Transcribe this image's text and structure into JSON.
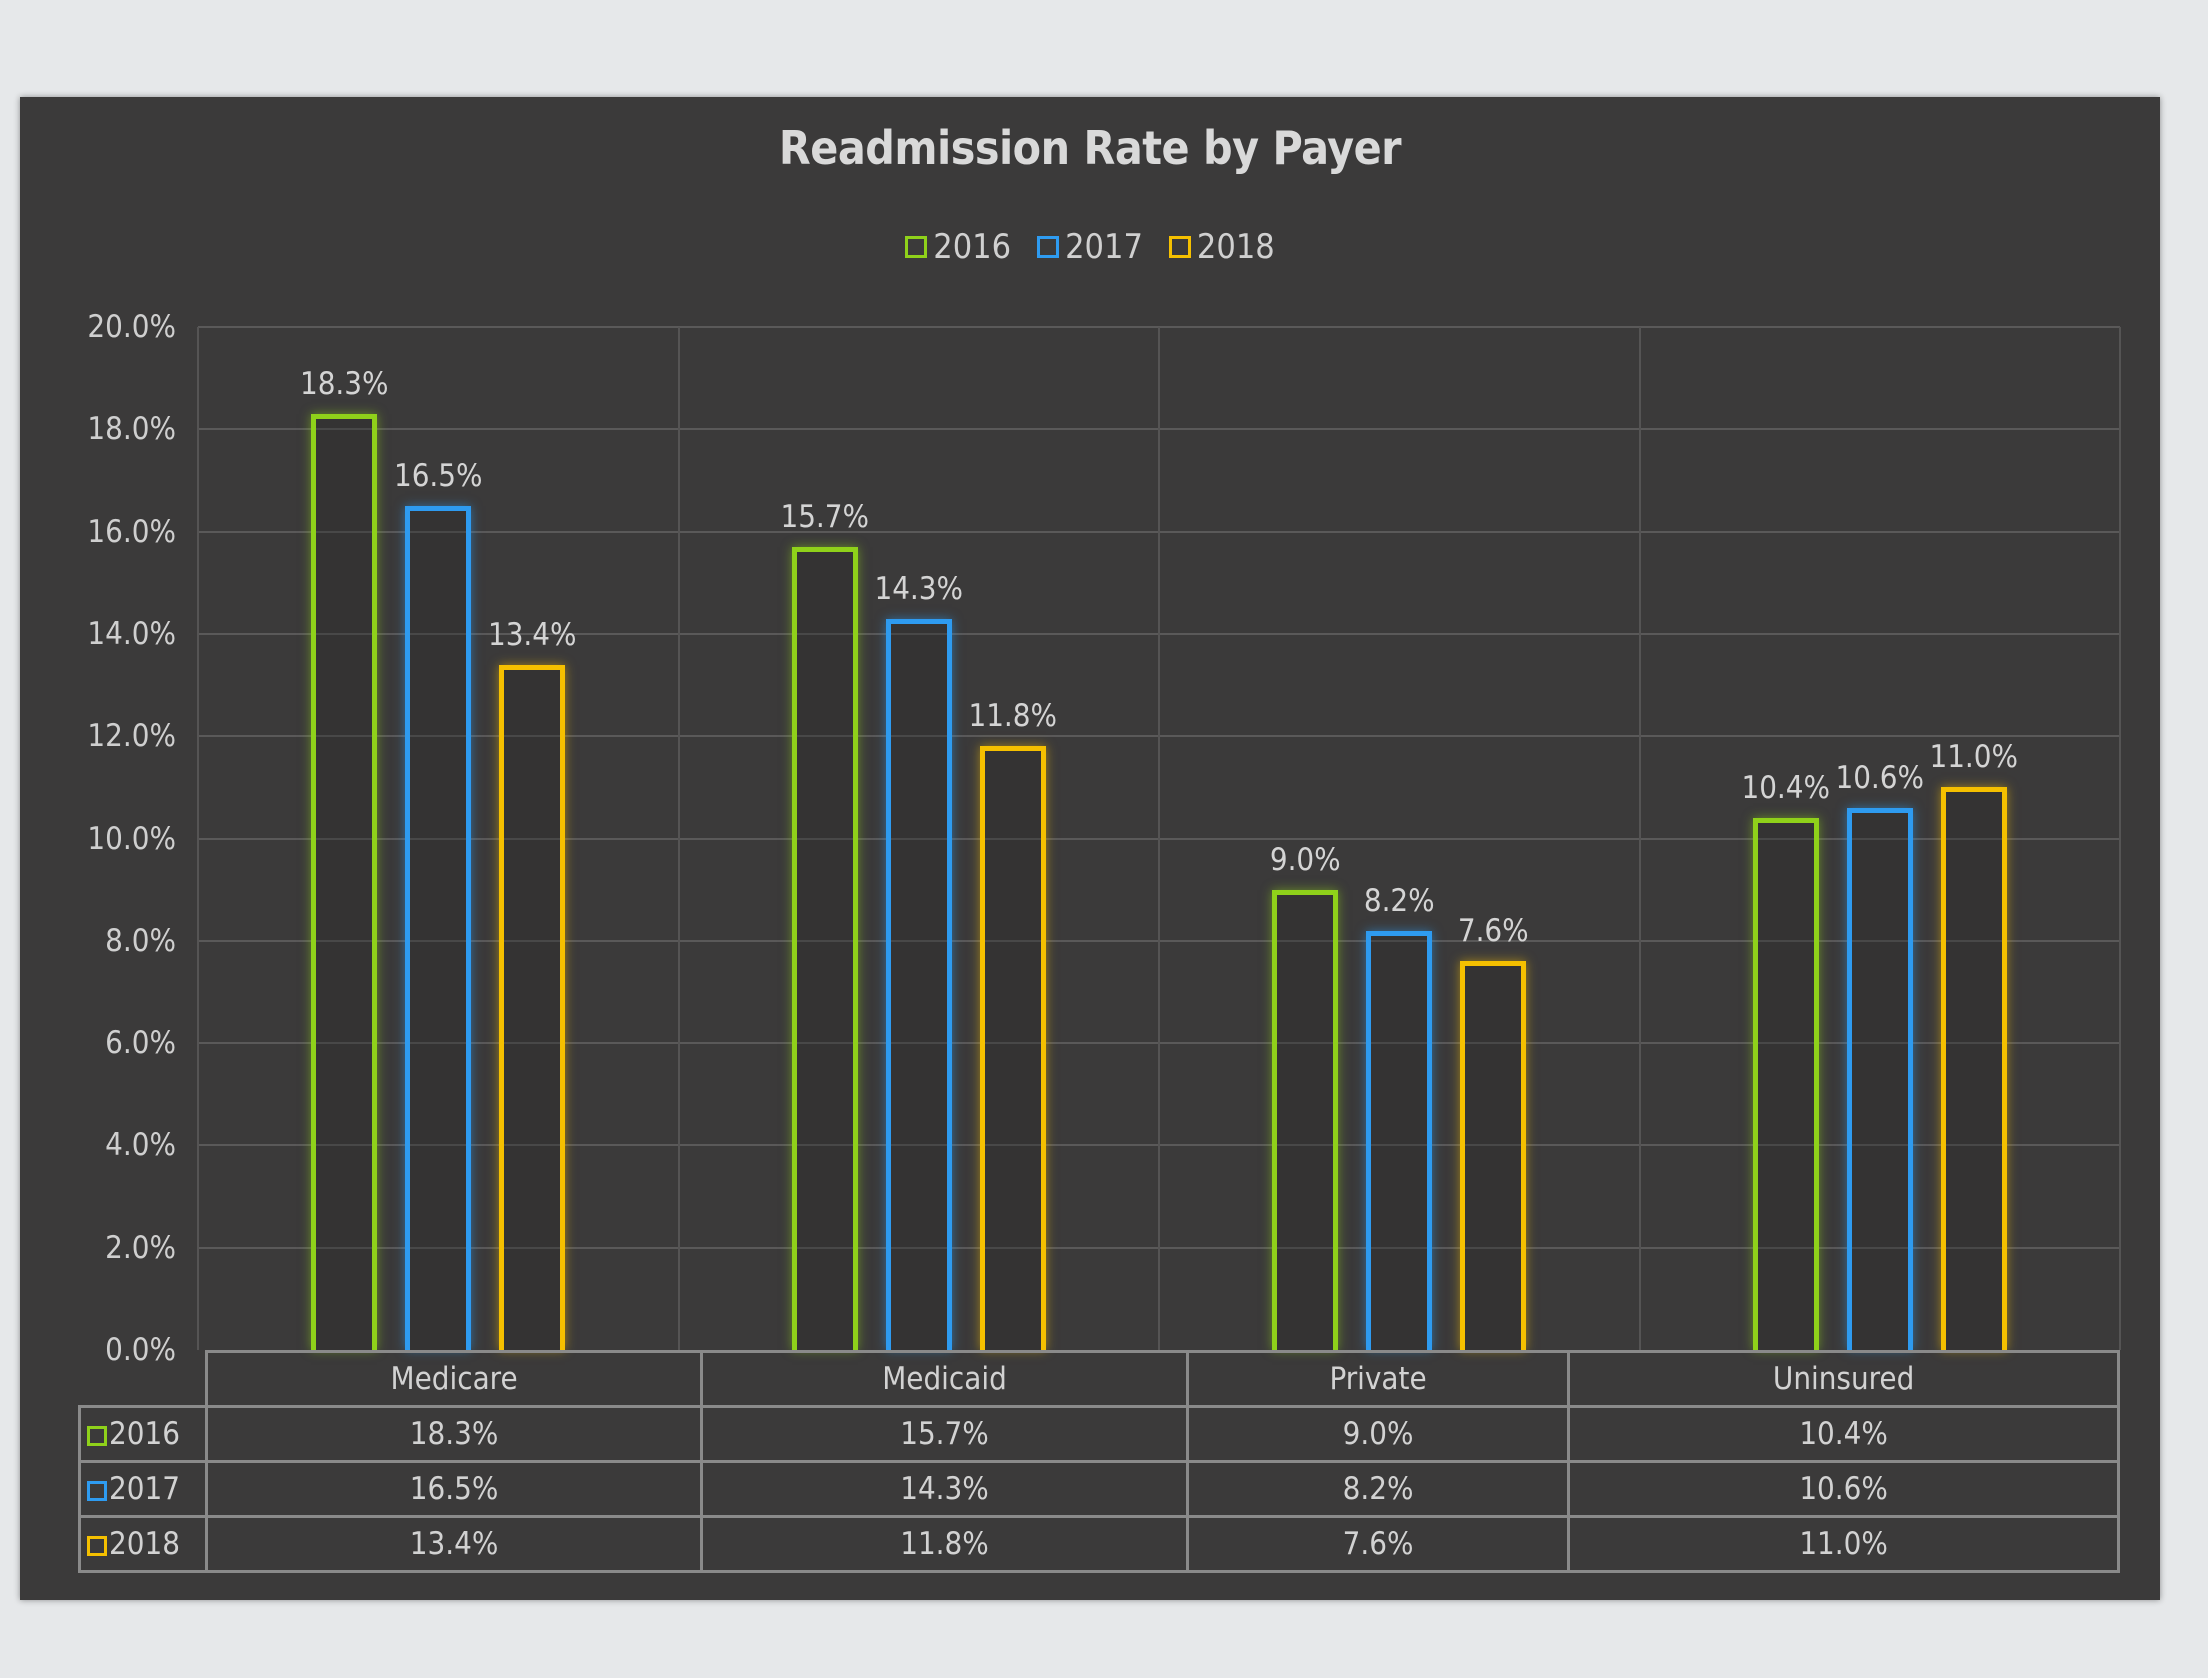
{
  "chart_data": {
    "type": "bar",
    "title": "Readmission Rate by Payer",
    "xlabel": "",
    "ylabel": "",
    "categories": [
      "Medicare",
      "Medicaid",
      "Private",
      "Uninsured"
    ],
    "series": [
      {
        "name": "2016",
        "color": "#8fd11a",
        "values": [
          18.3,
          15.7,
          9.0,
          10.4
        ],
        "labels": [
          "18.3%",
          "15.7%",
          "9.0%",
          "10.4%"
        ]
      },
      {
        "name": "2017",
        "color": "#2e9bf0",
        "values": [
          16.5,
          14.3,
          8.2,
          10.6
        ],
        "labels": [
          "16.5%",
          "14.3%",
          "8.2%",
          "10.6%"
        ]
      },
      {
        "name": "2018",
        "color": "#f5c000",
        "values": [
          13.4,
          11.8,
          7.6,
          11.0
        ],
        "labels": [
          "13.4%",
          "11.8%",
          "7.6%",
          "11.0%"
        ]
      }
    ],
    "ylim": [
      0,
      20
    ],
    "yticks": [
      "0.0%",
      "2.0%",
      "4.0%",
      "6.0%",
      "8.0%",
      "10.0%",
      "12.0%",
      "14.0%",
      "16.0%",
      "18.0%",
      "20.0%"
    ],
    "grid": true,
    "legend_position": "top",
    "data_table": true
  },
  "chart": {
    "title": "Readmission Rate by Payer",
    "legend": [
      {
        "label": "2016",
        "color": "#8fd11a"
      },
      {
        "label": "2017",
        "color": "#2e9bf0"
      },
      {
        "label": "2018",
        "color": "#f5c000"
      }
    ],
    "table": {
      "headers": [
        "Medicare",
        "Medicaid",
        "Private",
        "Uninsured"
      ],
      "rows": [
        {
          "label": "2016",
          "color": "#8fd11a",
          "cells": [
            "18.3%",
            "15.7%",
            "9.0%",
            "10.4%"
          ]
        },
        {
          "label": "2017",
          "color": "#2e9bf0",
          "cells": [
            "16.5%",
            "14.3%",
            "8.2%",
            "10.6%"
          ]
        },
        {
          "label": "2018",
          "color": "#f5c000",
          "cells": [
            "13.4%",
            "11.8%",
            "7.6%",
            "11.0%"
          ]
        }
      ]
    }
  }
}
